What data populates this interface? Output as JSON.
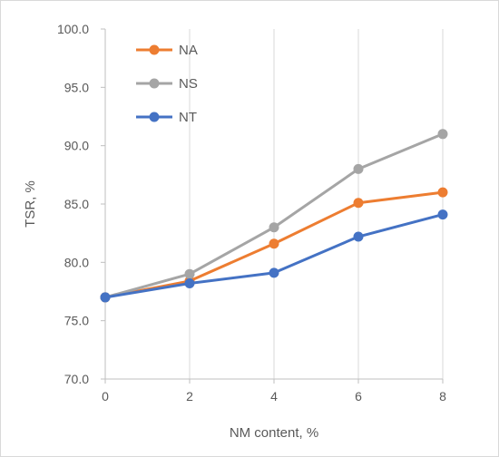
{
  "chart_data": {
    "type": "line",
    "title": "",
    "xlabel": "NM content, %",
    "ylabel": "TSR, %",
    "x": [
      0,
      2,
      4,
      6,
      8
    ],
    "x_ticks": [
      "0",
      "2",
      "4",
      "6",
      "8"
    ],
    "y_ticks": [
      "70.0",
      "75.0",
      "80.0",
      "85.0",
      "90.0",
      "95.0",
      "100.0"
    ],
    "xlim": [
      0,
      8
    ],
    "ylim": [
      70,
      100
    ],
    "grid": "vertical",
    "legend_position": "top-left",
    "series": [
      {
        "name": "NA",
        "color": "#ED7D31",
        "values": [
          77.0,
          78.4,
          81.6,
          85.1,
          86.0
        ]
      },
      {
        "name": "NS",
        "color": "#A5A5A5",
        "values": [
          77.0,
          79.0,
          83.0,
          88.0,
          91.0
        ]
      },
      {
        "name": "NT",
        "color": "#4472C4",
        "values": [
          77.0,
          78.2,
          79.1,
          82.2,
          84.1
        ]
      }
    ]
  }
}
